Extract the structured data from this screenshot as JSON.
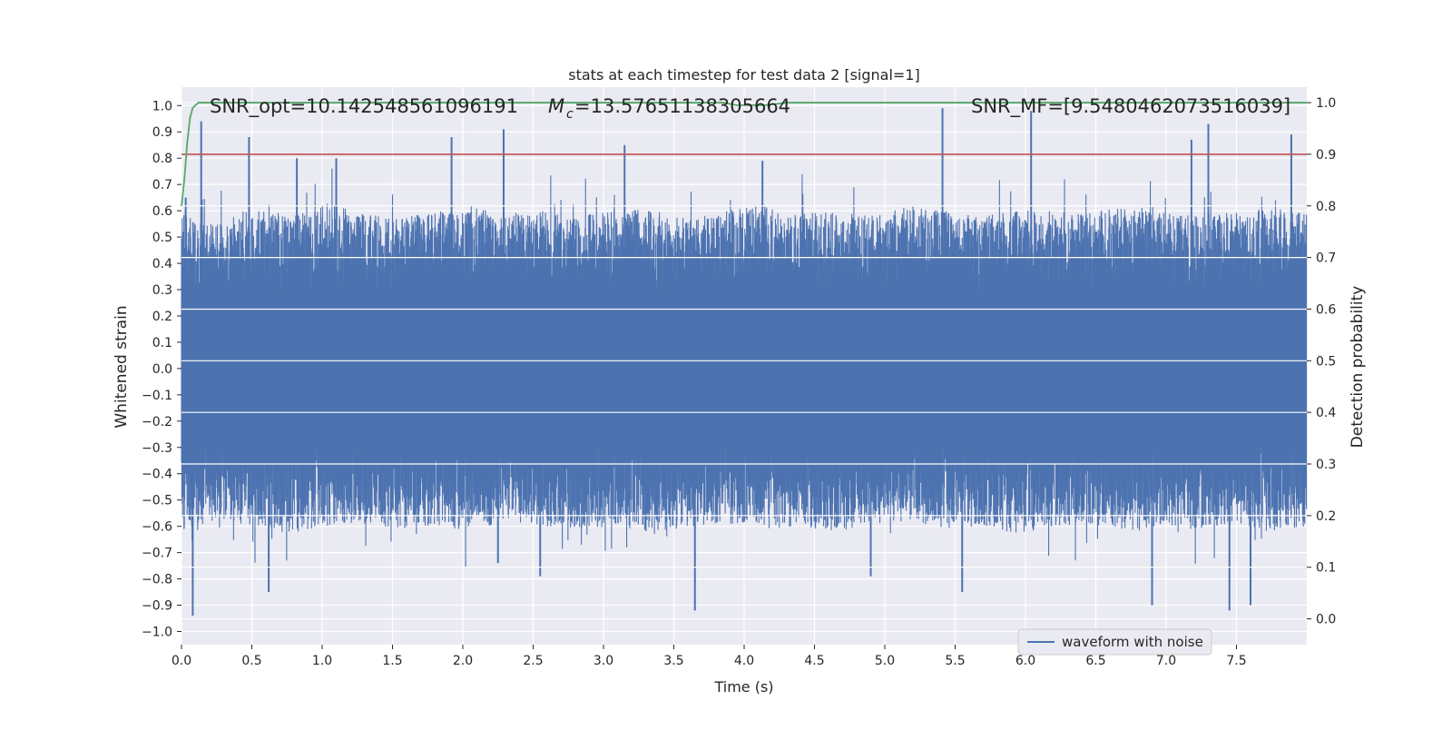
{
  "chart_data": {
    "type": "line",
    "title": "stats at each timestep for test data 2 [signal=1]",
    "xlabel": "Time (s)",
    "ylabel": "Whitened strain",
    "y2label": "Detection probability",
    "xlim": [
      0.0,
      8.0
    ],
    "ylim": [
      -1.05,
      1.07
    ],
    "y2lim": [
      -0.05,
      1.03
    ],
    "x_ticks": [
      "0.0",
      "0.5",
      "1.0",
      "1.5",
      "2.0",
      "2.5",
      "3.0",
      "3.5",
      "4.0",
      "4.5",
      "5.0",
      "5.5",
      "6.0",
      "6.5",
      "7.0",
      "7.5"
    ],
    "y_ticks": [
      "1.0",
      "0.9",
      "0.8",
      "0.7",
      "0.6",
      "0.5",
      "0.4",
      "0.3",
      "0.2",
      "0.1",
      "0.0",
      "−0.1",
      "−0.2",
      "−0.3",
      "−0.4",
      "−0.5",
      "−0.6",
      "−0.7",
      "−0.8",
      "−0.9",
      "−1.0"
    ],
    "y2_ticks": [
      "1.0",
      "0.9",
      "0.8",
      "0.7",
      "0.6",
      "0.5",
      "0.4",
      "0.3",
      "0.2",
      "0.1",
      "0.0"
    ],
    "grid": true,
    "legend_position": "lower-right",
    "annotations": {
      "snr_opt": "SNR_opt=10.142548561096191",
      "mc": "=13.57651138305664",
      "mc_symbol": "M",
      "mc_subscript": "c",
      "overlap_text": "SNR_MF=[9.5480462073516039]"
    },
    "series": [
      {
        "name": "waveform with noise",
        "color": "#4c72b0",
        "axis": "left",
        "kind": "dense noise",
        "envelope_top": [
          0.6,
          0.55,
          0.62,
          0.58,
          0.63,
          0.6,
          0.57,
          0.6,
          0.62,
          0.59,
          0.6,
          0.58,
          0.61,
          0.6,
          0.57,
          0.6,
          0.62,
          0.59,
          0.6,
          0.58,
          0.62,
          0.6,
          0.58,
          0.61,
          0.6,
          0.59,
          0.62,
          0.6,
          0.58,
          0.6,
          0.61,
          0.6
        ],
        "envelope_bottom": [
          -0.62,
          -0.58,
          -0.6,
          -0.63,
          -0.6,
          -0.59,
          -0.61,
          -0.6,
          -0.62,
          -0.58,
          -0.6,
          -0.61,
          -0.6,
          -0.63,
          -0.6,
          -0.59,
          -0.61,
          -0.6,
          -0.62,
          -0.6,
          -0.58,
          -0.61,
          -0.6,
          -0.63,
          -0.6,
          -0.59,
          -0.62,
          -0.6,
          -0.61,
          -0.6,
          -0.62,
          -0.6
        ],
        "peaks": [
          [
            0.03,
            0.65
          ],
          [
            0.08,
            -0.94
          ],
          [
            0.14,
            0.94
          ],
          [
            0.48,
            0.88
          ],
          [
            0.62,
            -0.85
          ],
          [
            0.82,
            0.8
          ],
          [
            1.1,
            0.8
          ],
          [
            1.92,
            0.88
          ],
          [
            2.29,
            0.91
          ],
          [
            2.55,
            -0.79
          ],
          [
            3.15,
            0.85
          ],
          [
            3.65,
            -0.92
          ],
          [
            4.13,
            0.79
          ],
          [
            5.41,
            0.99
          ],
          [
            5.55,
            -0.85
          ],
          [
            6.04,
            0.98
          ],
          [
            6.9,
            -0.9
          ],
          [
            7.18,
            0.87
          ],
          [
            7.3,
            0.93
          ],
          [
            7.45,
            -0.92
          ],
          [
            7.6,
            -0.9
          ],
          [
            7.89,
            0.89
          ],
          [
            4.9,
            -0.79
          ],
          [
            2.25,
            -0.74
          ]
        ]
      },
      {
        "name": "",
        "color": "#c44e52",
        "axis": "right",
        "kind": "threshold",
        "x": [
          0.0,
          8.0
        ],
        "y": [
          0.9,
          0.9
        ]
      },
      {
        "name": "",
        "color": "#55a868",
        "axis": "right",
        "kind": "probability",
        "x": [
          0.0,
          0.02,
          0.04,
          0.06,
          0.08,
          0.12,
          0.5,
          1.5,
          2.5,
          3.5,
          3.85,
          3.95,
          4.05,
          4.15,
          4.3,
          5.0,
          6.0,
          7.0,
          8.0
        ],
        "y": [
          0.8,
          0.85,
          0.92,
          0.97,
          0.99,
          1.0,
          1.0,
          1.0,
          1.0,
          1.0,
          1.0,
          0.995,
          0.995,
          0.995,
          1.0,
          1.0,
          1.0,
          1.0,
          1.0
        ]
      }
    ]
  }
}
